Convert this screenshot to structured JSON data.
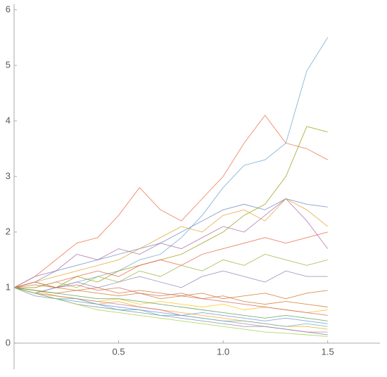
{
  "chart_data": {
    "type": "line",
    "x": [
      0,
      0.1,
      0.2,
      0.3,
      0.4,
      0.5,
      0.6,
      0.7,
      0.8,
      0.9,
      1.0,
      1.1,
      1.2,
      1.3,
      1.4,
      1.5
    ],
    "series": [
      {
        "color": "#eb6235",
        "values": [
          1,
          1.2,
          1.5,
          1.8,
          1.9,
          2.3,
          2.8,
          2.4,
          2.2,
          2.6,
          3.0,
          3.6,
          4.1,
          3.6,
          3.5,
          3.3
        ]
      },
      {
        "color": "#5d9ec7",
        "values": [
          1,
          0.9,
          1.0,
          1.1,
          1.2,
          1.3,
          1.5,
          1.6,
          1.9,
          2.3,
          2.8,
          3.2,
          3.3,
          3.6,
          4.9,
          5.5
        ]
      },
      {
        "color": "#929600",
        "values": [
          1,
          1.1,
          1.0,
          1.2,
          1.1,
          1.3,
          1.4,
          1.5,
          1.6,
          1.8,
          2.0,
          2.3,
          2.5,
          3.0,
          3.9,
          3.8
        ]
      },
      {
        "color": "#5e81b5",
        "values": [
          1,
          1.1,
          1.3,
          1.4,
          1.5,
          1.6,
          1.7,
          1.8,
          2.0,
          2.2,
          2.4,
          2.5,
          2.4,
          2.6,
          2.5,
          2.45
        ]
      },
      {
        "color": "#a5609d",
        "values": [
          1,
          1.2,
          1.3,
          1.6,
          1.5,
          1.7,
          1.6,
          1.8,
          1.7,
          1.9,
          2.1,
          2.0,
          2.3,
          2.6,
          2.2,
          1.7
        ]
      },
      {
        "color": "#e19c24",
        "values": [
          1,
          1.1,
          1.2,
          1.3,
          1.4,
          1.5,
          1.7,
          1.9,
          2.1,
          2.0,
          2.3,
          2.4,
          2.2,
          2.6,
          2.4,
          2.1
        ]
      },
      {
        "color": "#e95536",
        "values": [
          1,
          1.0,
          1.1,
          1.2,
          1.3,
          1.2,
          1.4,
          1.5,
          1.4,
          1.6,
          1.7,
          1.8,
          1.9,
          1.8,
          1.9,
          2.0
        ]
      },
      {
        "color": "#8fb032",
        "values": [
          1,
          1.0,
          1.1,
          1.0,
          1.2,
          1.1,
          1.3,
          1.2,
          1.4,
          1.3,
          1.5,
          1.4,
          1.6,
          1.5,
          1.4,
          1.5
        ]
      },
      {
        "color": "#8778b3",
        "values": [
          1,
          0.9,
          1.0,
          1.1,
          1.0,
          1.1,
          1.2,
          1.1,
          1.0,
          1.2,
          1.3,
          1.2,
          1.1,
          1.3,
          1.2,
          1.2
        ]
      },
      {
        "color": "#c56e1a",
        "values": [
          1,
          0.95,
          0.9,
          0.95,
          0.9,
          0.85,
          0.9,
          0.8,
          0.85,
          0.9,
          0.8,
          0.85,
          0.9,
          0.8,
          0.9,
          0.95
        ]
      },
      {
        "color": "#ffbf00",
        "values": [
          1,
          0.9,
          0.85,
          0.8,
          0.75,
          0.8,
          0.7,
          0.75,
          0.7,
          0.65,
          0.7,
          0.6,
          0.65,
          0.6,
          0.55,
          0.6
        ]
      },
      {
        "color": "#6685d9",
        "values": [
          1,
          0.9,
          0.8,
          0.75,
          0.7,
          0.65,
          0.6,
          0.55,
          0.5,
          0.55,
          0.5,
          0.45,
          0.4,
          0.45,
          0.4,
          0.35
        ]
      },
      {
        "color": "#f89f13",
        "values": [
          1,
          0.95,
          0.85,
          0.8,
          0.7,
          0.75,
          0.65,
          0.6,
          0.55,
          0.5,
          0.45,
          0.4,
          0.35,
          0.3,
          0.3,
          0.25
        ]
      },
      {
        "color": "#bc7196",
        "values": [
          1,
          0.9,
          0.85,
          0.8,
          0.75,
          0.7,
          0.65,
          0.6,
          0.5,
          0.45,
          0.4,
          0.35,
          0.3,
          0.25,
          0.2,
          0.2
        ]
      },
      {
        "color": "#7e7dab",
        "values": [
          1,
          0.85,
          0.8,
          0.7,
          0.65,
          0.6,
          0.55,
          0.5,
          0.45,
          0.4,
          0.35,
          0.3,
          0.3,
          0.25,
          0.2,
          0.15
        ]
      },
      {
        "color": "#4cb4b4",
        "values": [
          1,
          0.9,
          0.8,
          0.8,
          0.7,
          0.6,
          0.6,
          0.5,
          0.5,
          0.45,
          0.4,
          0.4,
          0.35,
          0.3,
          0.35,
          0.3
        ]
      },
      {
        "color": "#4a9a4a",
        "values": [
          1,
          0.95,
          0.9,
          0.85,
          0.8,
          0.8,
          0.75,
          0.7,
          0.65,
          0.6,
          0.55,
          0.5,
          0.45,
          0.5,
          0.45,
          0.4
        ]
      },
      {
        "color": "#d2691e",
        "values": [
          1,
          1.05,
          1.0,
          0.95,
          1.0,
          0.9,
          0.95,
          0.9,
          0.85,
          0.8,
          0.85,
          0.75,
          0.7,
          0.75,
          0.7,
          0.65
        ]
      },
      {
        "color": "#9acd32",
        "values": [
          1,
          0.9,
          0.8,
          0.7,
          0.6,
          0.55,
          0.5,
          0.45,
          0.4,
          0.35,
          0.3,
          0.25,
          0.2,
          0.18,
          0.15,
          0.12
        ]
      },
      {
        "color": "#cd5c5c",
        "values": [
          1,
          1.1,
          1.0,
          1.05,
          0.95,
          1.0,
          0.9,
          0.85,
          0.9,
          0.8,
          0.75,
          0.7,
          0.65,
          0.6,
          0.55,
          0.5
        ]
      }
    ],
    "xlim": [
      0,
      1.75
    ],
    "ylim": [
      -0.47,
      6.1
    ],
    "xticks": [
      0.5,
      {
        "value": 1,
        "label": "1.0"
      },
      1.5
    ],
    "yticks": [
      0,
      1,
      2,
      3,
      4,
      5,
      6
    ]
  }
}
